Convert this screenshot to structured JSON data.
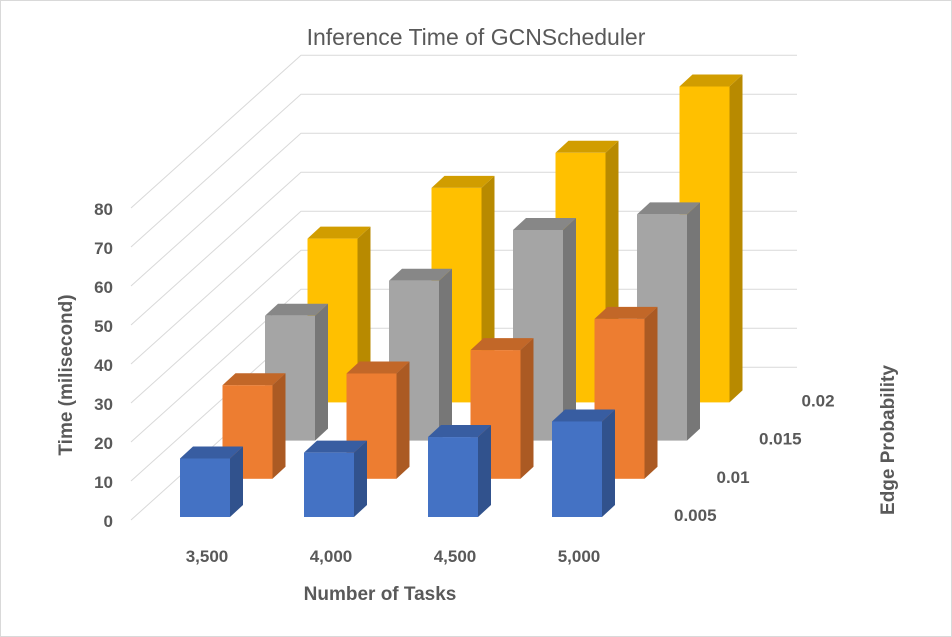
{
  "chart_data": {
    "type": "bar",
    "subtype": "3d-clustered-column",
    "title": "Inference Time of GCNScheduler",
    "xlabel": "Number of Tasks",
    "ylabel": "Time (milisecond)",
    "zlabel": "Edge Probability",
    "categories": [
      "3,500",
      "4,000",
      "4,500",
      "5,000"
    ],
    "y_ticks": [
      "0",
      "10",
      "20",
      "30",
      "40",
      "50",
      "60",
      "70",
      "80"
    ],
    "ylim": [
      0,
      80
    ],
    "grid": true,
    "series": [
      {
        "name": "0.005",
        "values": [
          15,
          16.5,
          20.5,
          24.5
        ],
        "color": "#4472c4"
      },
      {
        "name": "0.01",
        "values": [
          24,
          27,
          33,
          41
        ],
        "color": "#ed7d31"
      },
      {
        "name": "0.015",
        "values": [
          32,
          41,
          54,
          58
        ],
        "color": "#a5a5a5"
      },
      {
        "name": "0.02",
        "values": [
          42,
          55,
          64,
          81
        ],
        "color": "#ffc000"
      }
    ]
  }
}
